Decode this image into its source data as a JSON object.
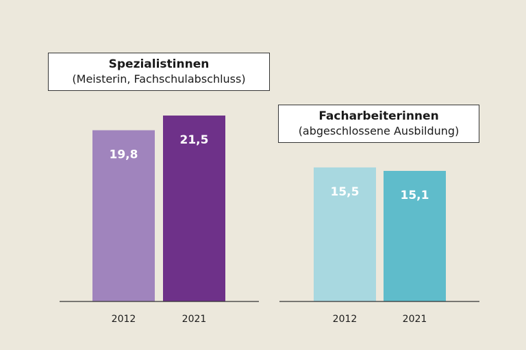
{
  "chart_data": [
    {
      "type": "bar",
      "title": "Spezialistinnen",
      "subtitle": "(Meisterin, Fachschulabschluss)",
      "categories": [
        "2012",
        "2021"
      ],
      "values": [
        19.8,
        21.5
      ],
      "value_labels": [
        "19,8",
        "21,5"
      ],
      "colors": [
        "#a084bd",
        "#6e3189"
      ],
      "label_color": "#ffffff",
      "axis_color": "#333333"
    },
    {
      "type": "bar",
      "title": "Facharbeiterinnen",
      "subtitle": "(abgeschlossene Ausbildung)",
      "categories": [
        "2012",
        "2021"
      ],
      "values": [
        15.5,
        15.1
      ],
      "value_labels": [
        "15,5",
        "15,1"
      ],
      "colors": [
        "#a8d8e0",
        "#5fbccb"
      ],
      "label_color": "#ffffff",
      "axis_color": "#333333"
    }
  ]
}
